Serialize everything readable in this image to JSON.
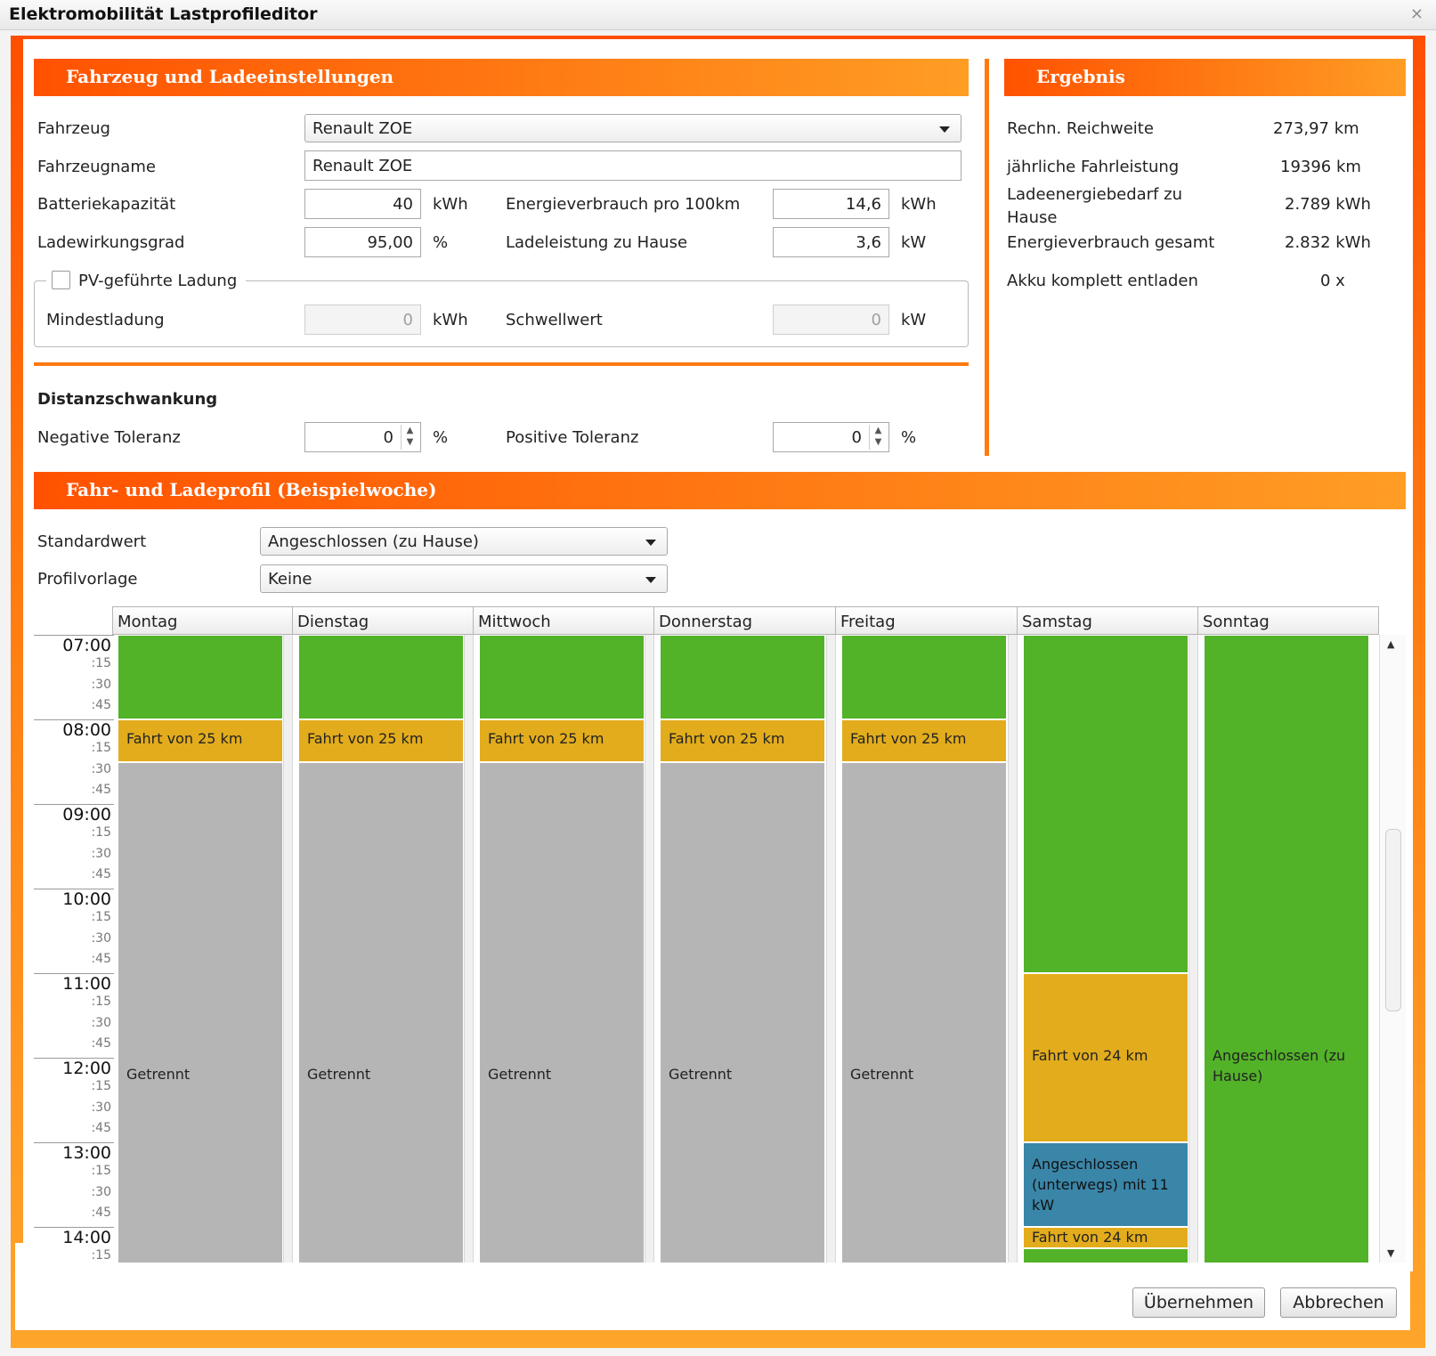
{
  "window": {
    "title": "Elektromobilität Lastprofileditor"
  },
  "sections": {
    "vehicle": "Fahrzeug und Ladeeinstellungen",
    "result": "Ergebnis",
    "profile": "Fahr- und Ladeprofil (Beispielwoche)"
  },
  "vehicle": {
    "fahrzeug_label": "Fahrzeug",
    "fahrzeug_value": "Renault ZOE",
    "name_label": "Fahrzeugname",
    "name_value": "Renault ZOE",
    "battery_label": "Batteriekapazität",
    "battery_value": "40",
    "battery_unit": "kWh",
    "consumption_label": "Energieverbrauch pro 100km",
    "consumption_value": "14,6",
    "consumption_unit": "kWh",
    "efficiency_label": "Ladewirkungsgrad",
    "efficiency_value": "95,00",
    "efficiency_unit": "%",
    "power_label": "Ladeleistung zu Hause",
    "power_value": "3,6",
    "power_unit": "kW",
    "pv_label": "PV-geführte Ladung",
    "min_label": "Mindestladung",
    "min_value": "0",
    "min_unit": "kWh",
    "threshold_label": "Schwellwert",
    "threshold_value": "0",
    "threshold_unit": "kW"
  },
  "distance": {
    "heading": "Distanzschwankung",
    "neg_label": "Negative Toleranz",
    "neg_value": "0",
    "neg_unit": "%",
    "pos_label": "Positive Toleranz",
    "pos_value": "0",
    "pos_unit": "%"
  },
  "result": {
    "range_label": "Rechn. Reichweite",
    "range_value": "273,97 km",
    "annual_label": "jährliche Fahrleistung",
    "annual_value": "19396 km",
    "home_label": "Ladeenergiebedarf zu Hause",
    "home_value": "2.789 kWh",
    "total_label": "Energieverbrauch gesamt",
    "total_value": "2.832 kWh",
    "empty_label": "Akku komplett entladen",
    "empty_value": "0 x"
  },
  "profile": {
    "default_label": "Standardwert",
    "default_value": "Angeschlossen (zu Hause)",
    "template_label": "Profilvorlage",
    "template_value": "Keine"
  },
  "calendar": {
    "days": [
      "Montag",
      "Dienstag",
      "Mittwoch",
      "Donnerstag",
      "Freitag",
      "Samstag",
      "Sonntag"
    ],
    "times": [
      "07:00",
      ":15",
      ":30",
      ":45",
      "08:00",
      ":15",
      ":30",
      ":45",
      "09:00",
      ":15",
      ":30",
      ":45",
      "10:00",
      ":15",
      ":30",
      ":45",
      "11:00",
      ":15",
      ":30",
      ":45",
      "12:00",
      ":15",
      ":30",
      ":45",
      "13:00",
      ":15",
      ":30",
      ":45",
      "14:00",
      ":15"
    ],
    "labels": {
      "drive25": "Fahrt von 25 km",
      "drive24": "Fahrt von 24 km",
      "disconnected": "Getrennt",
      "home": "Angeschlossen (zu Hause)",
      "away": "Angeschlossen (unterwegs) mit 11 kW"
    },
    "colors": {
      "home": "#52b228",
      "drive": "#e2ac1c",
      "disconnected": "#b5b5b5",
      "away": "#3a86a8"
    }
  },
  "buttons": {
    "apply": "Übernehmen",
    "cancel": "Abbrechen"
  }
}
